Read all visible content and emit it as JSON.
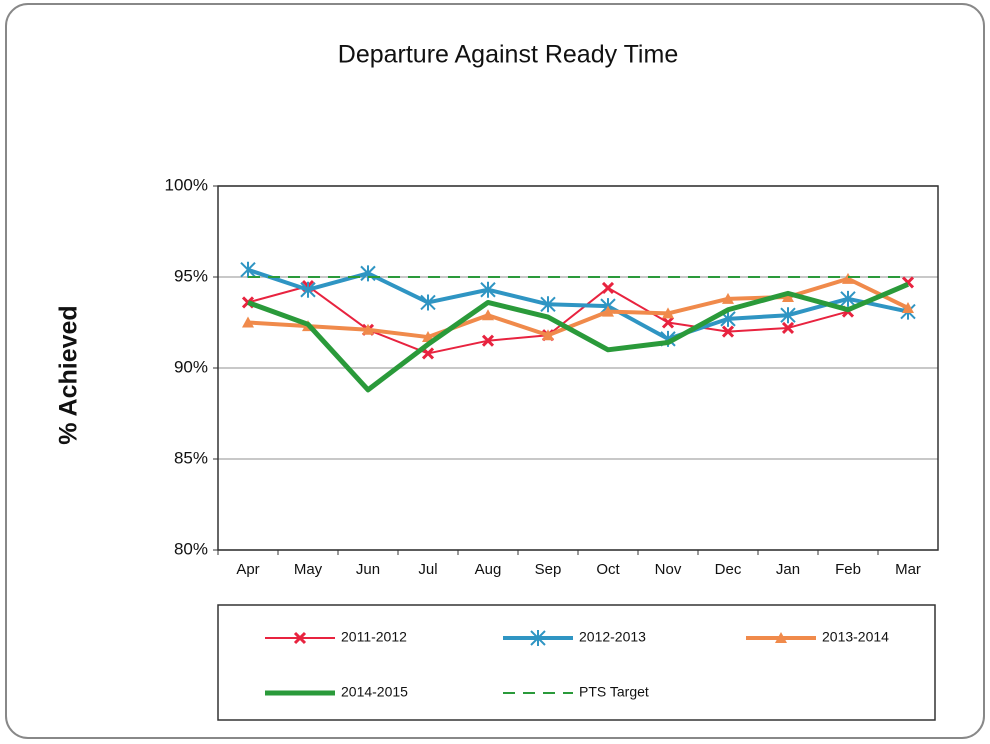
{
  "chart_data": {
    "type": "line",
    "title": "Departure Against Ready Time",
    "y_label": "% Achieved",
    "categories": [
      "Apr",
      "May",
      "Jun",
      "Jul",
      "Aug",
      "Sep",
      "Oct",
      "Nov",
      "Dec",
      "Jan",
      "Feb",
      "Mar"
    ],
    "ylim": [
      80,
      100
    ],
    "yticks": [
      {
        "value": 80,
        "label": "80%"
      },
      {
        "value": 85,
        "label": "85%"
      },
      {
        "value": 90,
        "label": "90%"
      },
      {
        "value": 95,
        "label": "95%"
      },
      {
        "value": 100,
        "label": "100%"
      }
    ],
    "grid": true,
    "legend": "bottom",
    "series": [
      {
        "name": "2011-2012",
        "color": "#e8233f",
        "width": 2,
        "marker": "x",
        "dash": false,
        "values": [
          93.6,
          94.5,
          92.1,
          90.8,
          91.5,
          91.8,
          94.4,
          92.5,
          92.0,
          92.2,
          93.1,
          94.7
        ]
      },
      {
        "name": "2012-2013",
        "color": "#2f95c3",
        "width": 4,
        "marker": "star",
        "dash": false,
        "values": [
          95.4,
          94.3,
          95.2,
          93.6,
          94.3,
          93.5,
          93.4,
          91.6,
          92.7,
          92.9,
          93.8,
          93.1
        ]
      },
      {
        "name": "2013-2014",
        "color": "#f08a4b",
        "width": 4,
        "marker": "triangle",
        "dash": false,
        "values": [
          92.5,
          92.3,
          92.1,
          91.7,
          92.9,
          91.8,
          93.1,
          93.0,
          93.8,
          93.9,
          94.9,
          93.3
        ]
      },
      {
        "name": "2014-2015",
        "color": "#2a9a3a",
        "width": 5,
        "marker": null,
        "dash": false,
        "values": [
          93.6,
          92.4,
          88.8,
          91.3,
          93.6,
          92.8,
          91.0,
          91.4,
          93.2,
          94.1,
          93.2,
          94.6
        ]
      },
      {
        "name": "PTS Target",
        "color": "#2a9a3a",
        "width": 2,
        "marker": null,
        "dash": true,
        "values": [
          95,
          95,
          95,
          95,
          95,
          95,
          95,
          95,
          95,
          95,
          95,
          95
        ]
      }
    ]
  }
}
